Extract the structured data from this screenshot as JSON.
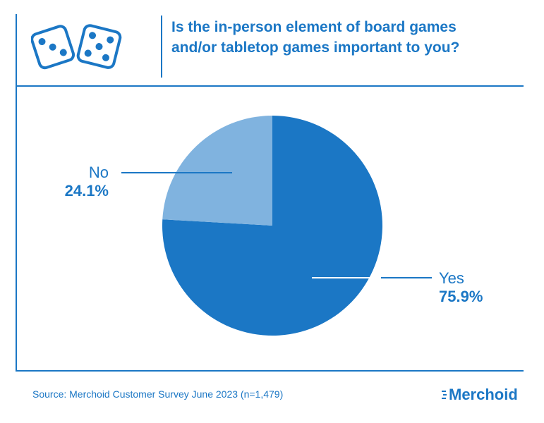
{
  "header": {
    "title_line1": "Is the in-person element of board games",
    "title_line2": "and/or tabletop games important to you?",
    "icon": "dice-icon"
  },
  "colors": {
    "accent": "#1b77c5",
    "yes": "#1b77c5",
    "no": "#80b3df"
  },
  "chart_data": {
    "type": "pie",
    "title": "Is the in-person element of board games and/or tabletop games important to you?",
    "slices": [
      {
        "label": "Yes",
        "value": 75.9,
        "display": "75.9%"
      },
      {
        "label": "No",
        "value": 24.1,
        "display": "24.1%"
      }
    ]
  },
  "footer": {
    "source": "Source: Merchoid Customer Survey June 2023 (n=1,479)",
    "logo_text": "Merchoid"
  }
}
